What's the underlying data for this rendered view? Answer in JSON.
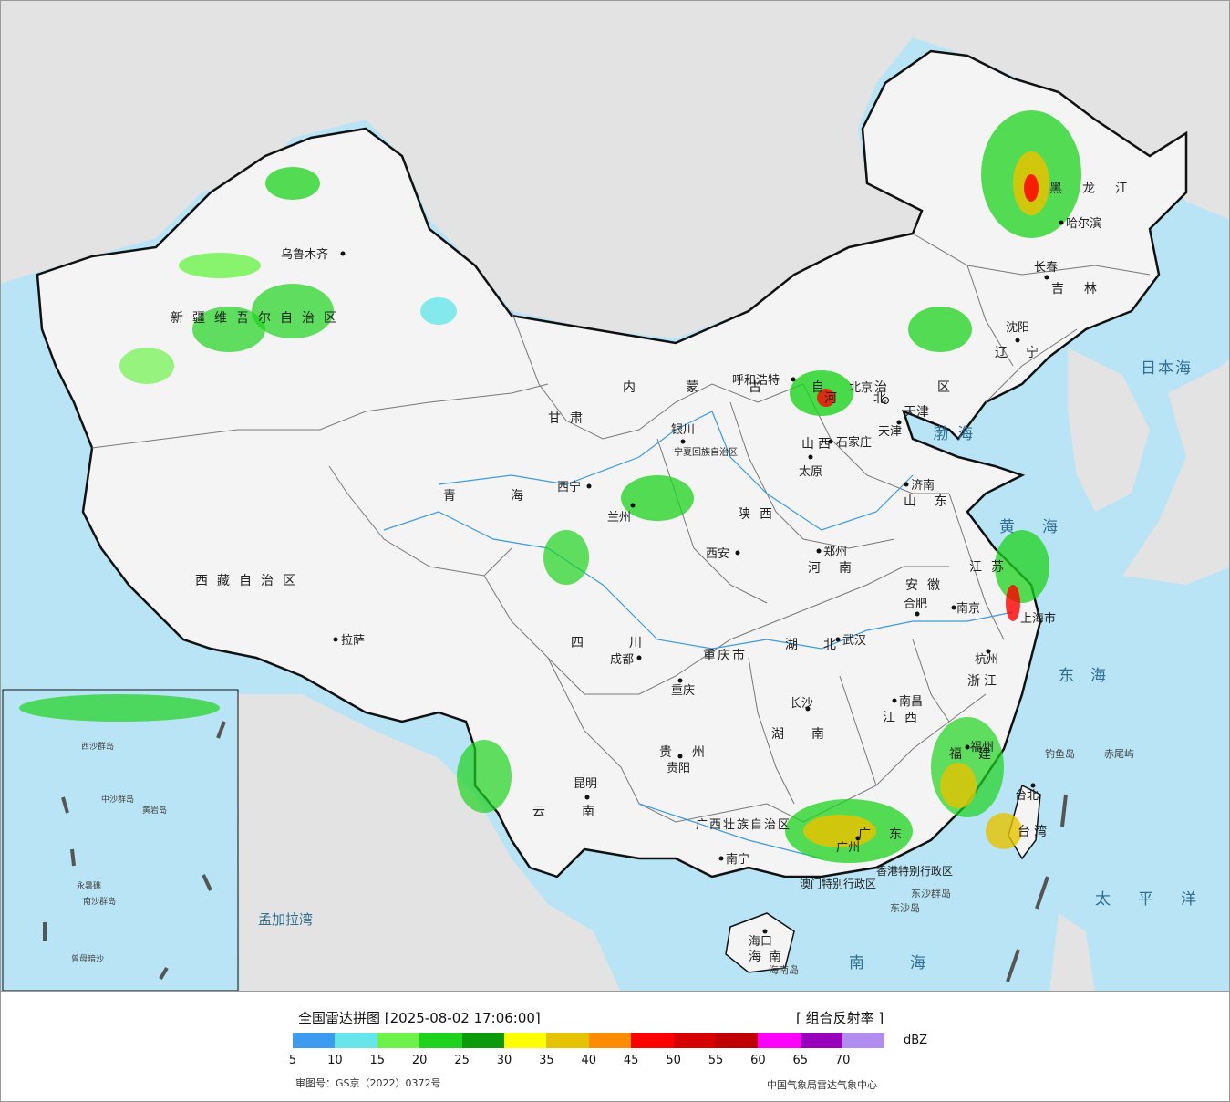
{
  "colors": {
    "ocean": "#b8e4f5",
    "foreign_land": "#e3e3e3",
    "china_land": "#f4f4f4",
    "border": "#111111",
    "province_line": "#777777",
    "river": "#3b9be0"
  },
  "legend": {
    "title": "全国雷达拼图 [2025-08-02 17:06:00]",
    "product": "[ 组合反射率 ]",
    "unit": "dBZ",
    "scale": [
      {
        "value": "5",
        "color": "#3d9bf0"
      },
      {
        "value": "10",
        "color": "#66e6ea"
      },
      {
        "value": "15",
        "color": "#6df24a"
      },
      {
        "value": "20",
        "color": "#1ed31e"
      },
      {
        "value": "25",
        "color": "#0a9a0a"
      },
      {
        "value": "30",
        "color": "#ffff00"
      },
      {
        "value": "35",
        "color": "#e6c300"
      },
      {
        "value": "40",
        "color": "#ff8c00"
      },
      {
        "value": "45",
        "color": "#ff0000"
      },
      {
        "value": "50",
        "color": "#d60000"
      },
      {
        "value": "55",
        "color": "#c00000"
      },
      {
        "value": "60",
        "color": "#ff00ff"
      },
      {
        "value": "65",
        "color": "#9900bb"
      },
      {
        "value": "70",
        "color": "#b28df0"
      }
    ],
    "approval": "审图号：GS京（2022）0372号",
    "source": "中国气象局雷达气象中心"
  },
  "map": {
    "cities": [
      {
        "name": "乌鲁木齐"
      },
      {
        "name": "拉萨"
      },
      {
        "name": "西宁"
      },
      {
        "name": "兰州"
      },
      {
        "name": "银川"
      },
      {
        "name": "呼和浩特"
      },
      {
        "name": "北京"
      },
      {
        "name": "天津"
      },
      {
        "name": "石家庄"
      },
      {
        "name": "太原"
      },
      {
        "name": "济南"
      },
      {
        "name": "郑州"
      },
      {
        "name": "西安"
      },
      {
        "name": "成都"
      },
      {
        "name": "重庆"
      },
      {
        "name": "武汉"
      },
      {
        "name": "合肥"
      },
      {
        "name": "南京"
      },
      {
        "name": "上海市"
      },
      {
        "name": "杭州"
      },
      {
        "name": "南昌"
      },
      {
        "name": "长沙"
      },
      {
        "name": "贵阳"
      },
      {
        "name": "昆明"
      },
      {
        "name": "南宁"
      },
      {
        "name": "广州"
      },
      {
        "name": "福州"
      },
      {
        "name": "台北"
      },
      {
        "name": "海口"
      },
      {
        "name": "哈尔滨"
      },
      {
        "name": "长春"
      },
      {
        "name": "沈阳"
      }
    ],
    "provinces": [
      "新疆维吾尔自治区",
      "西藏自治区",
      "青海",
      "甘肃",
      "内蒙古自治区",
      "黑龙江",
      "吉林",
      "辽宁",
      "河北",
      "山西",
      "山东",
      "河南",
      "陕西",
      "四川",
      "湖北",
      "安徽",
      "江苏",
      "浙江",
      "江西",
      "湖南",
      "贵州",
      "云南",
      "广西壮族自治区",
      "广东",
      "福建",
      "台湾",
      "海南",
      "宁夏回族自治区",
      "重庆市",
      "天津",
      "香港特别行政区",
      "澳门特别行政区"
    ],
    "seas": [
      "渤海",
      "黄海",
      "东海",
      "南海",
      "日本海",
      "太平洋",
      "孟加拉湾"
    ],
    "islands": [
      "钓鱼岛",
      "赤尾屿",
      "东沙群岛",
      "东沙岛",
      "海南岛",
      "中沙群岛",
      "黄岩岛",
      "南沙群岛",
      "西沙群岛",
      "永暑礁",
      "曾母暗沙"
    ]
  }
}
